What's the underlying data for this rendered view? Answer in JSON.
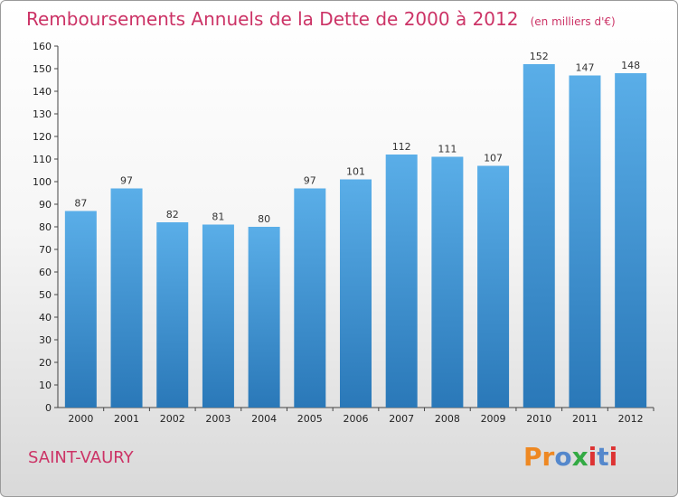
{
  "title": "Remboursements Annuels de la Dette de 2000 à 2012",
  "unit": "(en milliers d'€)",
  "commune": "SAINT-VAURY",
  "logo": "Proxiti",
  "colors": {
    "title": "#cc3366",
    "bar_light": "#5aaee8",
    "bar_dark": "#2a78b8",
    "logo": [
      "#ee8822",
      "#ee8822",
      "#5588cc",
      "#33aa44",
      "#dd3333",
      "#5588cc",
      "#dd3333"
    ]
  },
  "chart_data": {
    "type": "bar",
    "categories": [
      "2000",
      "2001",
      "2002",
      "2003",
      "2004",
      "2005",
      "2006",
      "2007",
      "2008",
      "2009",
      "2010",
      "2011",
      "2012"
    ],
    "values": [
      87,
      97,
      82,
      81,
      80,
      97,
      101,
      112,
      111,
      107,
      152,
      147,
      148
    ],
    "ylim": [
      0,
      160
    ],
    "yticks": [
      0,
      10,
      20,
      30,
      40,
      50,
      60,
      70,
      80,
      90,
      100,
      110,
      120,
      130,
      140,
      150,
      160
    ],
    "grid": false,
    "legend": "none"
  }
}
